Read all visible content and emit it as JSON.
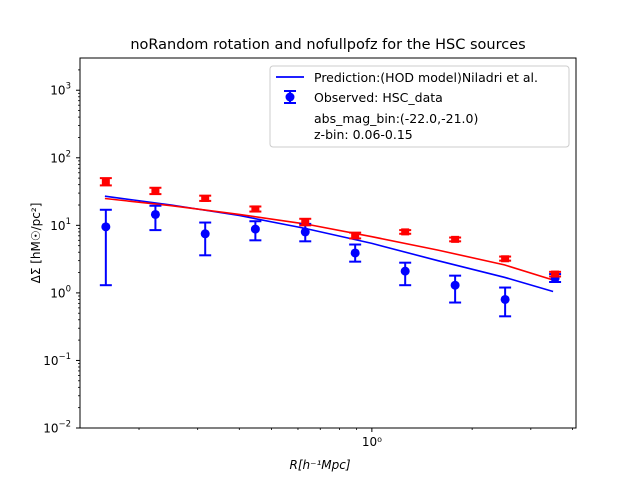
{
  "chart_data": {
    "type": "scatter",
    "title": "noRandom rotation and nofullpofz for the HSC sources",
    "xlabel": "R[h⁻¹Mpc]",
    "ylabel": "ΔΣ [hM☉/pc²]",
    "xscale": "log",
    "yscale": "log",
    "xlim": [
      0.133,
      4.1
    ],
    "ylim": [
      0.01,
      3000
    ],
    "grid": false,
    "legend_position": "top-right",
    "x_ticks": [
      {
        "value": 1,
        "label": "10⁰"
      }
    ],
    "y_ticks": [
      {
        "value": 0.01,
        "base": "10",
        "exp": "−2"
      },
      {
        "value": 0.1,
        "base": "10",
        "exp": "−1"
      },
      {
        "value": 1,
        "base": "10",
        "exp": "0"
      },
      {
        "value": 10,
        "base": "10",
        "exp": "1"
      },
      {
        "value": 100,
        "base": "10",
        "exp": "2"
      },
      {
        "value": 1000,
        "base": "10",
        "exp": "3"
      }
    ],
    "series": [
      {
        "name": "Prediction:(HOD model)Niladri et al.",
        "kind": "line",
        "color": "#0000ff",
        "x": [
          0.158,
          0.25,
          0.4,
          0.63,
          1.0,
          1.58,
          2.5,
          3.5
        ],
        "y": [
          27.0,
          20.0,
          14.0,
          9.0,
          5.4,
          3.0,
          1.7,
          1.05
        ]
      },
      {
        "name": "",
        "kind": "line",
        "color": "#ff0000",
        "x": [
          0.158,
          0.25,
          0.4,
          0.63,
          1.0,
          1.58,
          2.5,
          3.5
        ],
        "y": [
          25.0,
          19.5,
          14.5,
          10.5,
          6.8,
          4.3,
          2.6,
          1.55
        ]
      },
      {
        "name": "Observed: HSC_data",
        "kind": "errorbar",
        "color": "#0000ff",
        "marker": "circle",
        "points": [
          {
            "x": 0.159,
            "y": 9.5,
            "lo": 1.3,
            "hi": 17.0
          },
          {
            "x": 0.224,
            "y": 14.5,
            "lo": 8.5,
            "hi": 19.5
          },
          {
            "x": 0.316,
            "y": 7.5,
            "lo": 3.6,
            "hi": 11.0
          },
          {
            "x": 0.447,
            "y": 8.8,
            "lo": 6.0,
            "hi": 11.5
          },
          {
            "x": 0.631,
            "y": 8.0,
            "lo": 5.8,
            "hi": 10.5
          },
          {
            "x": 0.891,
            "y": 3.9,
            "lo": 2.9,
            "hi": 5.2
          },
          {
            "x": 1.259,
            "y": 2.1,
            "lo": 1.3,
            "hi": 2.8
          },
          {
            "x": 1.778,
            "y": 1.3,
            "lo": 0.72,
            "hi": 1.8
          },
          {
            "x": 2.512,
            "y": 0.8,
            "lo": 0.45,
            "hi": 1.2
          },
          {
            "x": 3.548,
            "y": 1.65,
            "lo": 1.45,
            "hi": 1.9
          }
        ]
      },
      {
        "name": "",
        "kind": "errorbar",
        "color": "#ff0000",
        "marker": "square",
        "points": [
          {
            "x": 0.159,
            "y": 44.0,
            "lo": 39.0,
            "hi": 50.0
          },
          {
            "x": 0.224,
            "y": 32.0,
            "lo": 29.0,
            "hi": 36.0
          },
          {
            "x": 0.316,
            "y": 25.0,
            "lo": 23.0,
            "hi": 27.5
          },
          {
            "x": 0.447,
            "y": 17.5,
            "lo": 16.0,
            "hi": 19.0
          },
          {
            "x": 0.631,
            "y": 11.0,
            "lo": 10.0,
            "hi": 12.5
          },
          {
            "x": 0.891,
            "y": 7.0,
            "lo": 6.4,
            "hi": 7.8
          },
          {
            "x": 1.259,
            "y": 8.0,
            "lo": 7.5,
            "hi": 8.5
          },
          {
            "x": 1.778,
            "y": 6.2,
            "lo": 5.8,
            "hi": 6.6
          },
          {
            "x": 2.512,
            "y": 3.2,
            "lo": 3.0,
            "hi": 3.45
          },
          {
            "x": 3.548,
            "y": 1.9,
            "lo": 1.75,
            "hi": 2.05
          }
        ]
      }
    ],
    "legend": {
      "entries": [
        {
          "label": "Prediction:(HOD model)Niladri et al.",
          "kind": "line",
          "color": "#0000ff"
        },
        {
          "label": "Observed: HSC_data",
          "kind": "errorbar",
          "color": "#0000ff"
        }
      ],
      "extra_text": [
        "abs_mag_bin:(-22.0,-21.0)",
        "z-bin: 0.06-0.15"
      ]
    }
  }
}
